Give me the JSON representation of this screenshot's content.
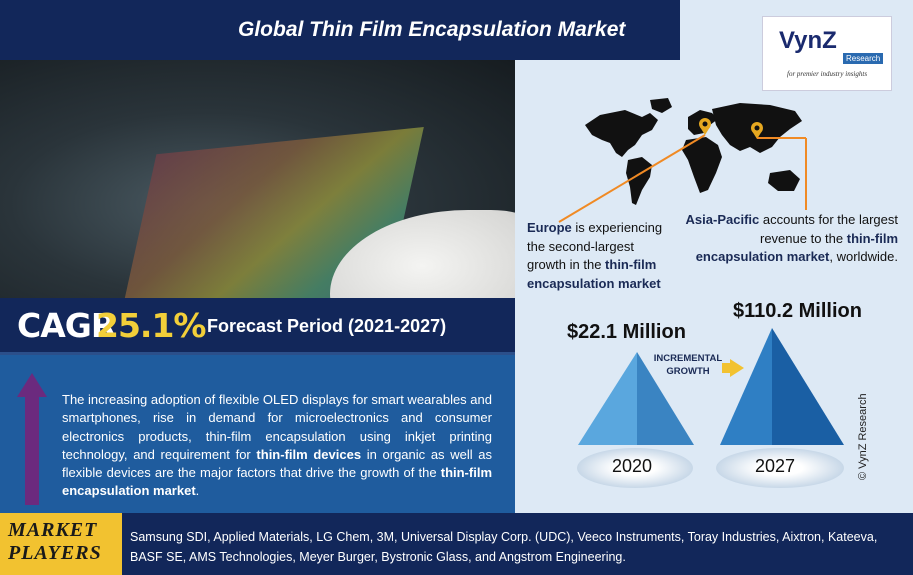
{
  "header": {
    "title": "Global Thin Film Encapsulation Market"
  },
  "logo": {
    "main": "VynZ",
    "tag": "Research",
    "sub": "for premier industry insights"
  },
  "regions": {
    "europe": {
      "name": "Europe",
      "text_a": " is experiencing the second-largest growth in the ",
      "highlight": "thin-film encapsulation market"
    },
    "asia": {
      "name": "Asia-Pacific",
      "text_a": " accounts for the largest revenue to the ",
      "highlight": "thin-film encapsulation market",
      "text_b": ", worldwide."
    }
  },
  "cagr": {
    "label": "CAGR",
    "value": "25.1%",
    "forecast": "Forecast Period (2021-2027)"
  },
  "description": {
    "part1": "The increasing adoption of flexible OLED displays for smart wearables and smartphones, rise in demand for microelectronics and consumer electronics products, thin-film encapsulation using inkjet printing technology, and requirement for ",
    "bold1": "thin-film devices",
    "part2": " in organic as well as flexible devices are the major factors that drive the growth of the ",
    "bold2": "thin-film encapsulation market",
    "part3": "."
  },
  "market_size": {
    "value_2020": "$22.1 Million",
    "value_2027": "$110.2 Million",
    "year_2020": "2020",
    "year_2027": "2027",
    "incremental_line1": "INCREMENTAL",
    "incremental_line2": "GROWTH"
  },
  "watermark": "© VynZ Research",
  "players": {
    "label_line1": "MARKET",
    "label_line2": "PLAYERS",
    "list": "Samsung SDI, Applied Materials, LG Chem, 3M, Universal Display Corp. (UDC), Veeco Instruments, Toray Industries, Aixtron, Kateeva, BASF SE, AMS Technologies, Meyer Burger, Bystronic Glass, and Angstrom Engineering."
  },
  "colors": {
    "navy": "#12275a",
    "accent_yellow": "#f2cf39",
    "panel_blue": "#1f5c9e",
    "arrow_purple": "#6b2a7e",
    "pyramid_blue": "#2f7fc4"
  }
}
